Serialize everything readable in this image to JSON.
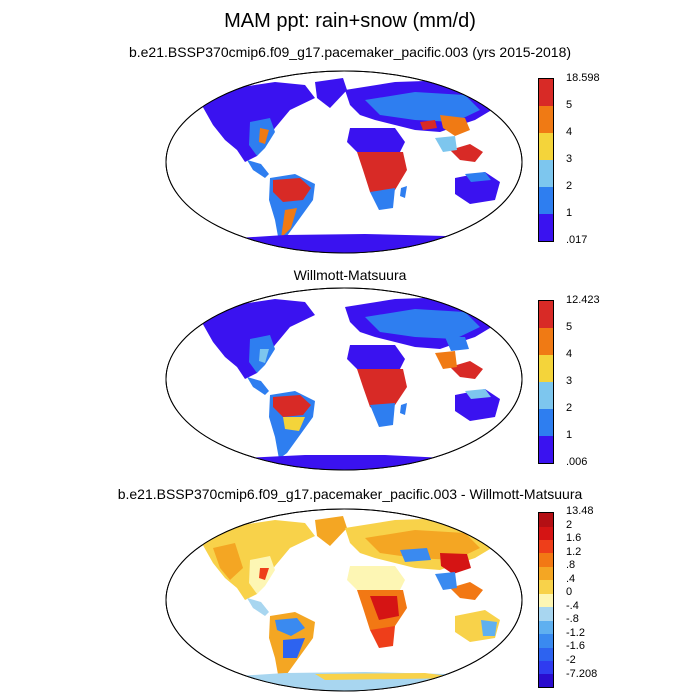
{
  "title": "MAM ppt: rain+snow (mm/d)",
  "panels": [
    {
      "title": "b.e21.BSSP370cmip6.f09_g17.pacemaker_pacific.003 (yrs 2015-2018)",
      "colorbar": {
        "colors": [
          "#3a12f0",
          "#2e7ef0",
          "#7dc6ee",
          "#f4d43a",
          "#f07a14",
          "#d82a26"
        ],
        "labels": [
          ".017",
          "1",
          "2",
          "3",
          "4",
          "5",
          "18.598"
        ]
      }
    },
    {
      "title": "Willmott-Matsuura",
      "colorbar": {
        "colors": [
          "#3a12f0",
          "#2e7ef0",
          "#7dc6ee",
          "#f4d43a",
          "#f07a14",
          "#d82a26"
        ],
        "labels": [
          ".006",
          "1",
          "2",
          "3",
          "4",
          "5",
          "12.423"
        ]
      }
    },
    {
      "title": "b.e21.BSSP370cmip6.f09_g17.pacemaker_pacific.003 - Willmott-Matsuura",
      "colorbar": {
        "colors": [
          "#2a0ccf",
          "#2f3cf0",
          "#2d63f0",
          "#3a8af0",
          "#5fb0f0",
          "#a8d6f0",
          "#fdf6b4",
          "#f8d24a",
          "#f4a623",
          "#f27814",
          "#ee3e1a",
          "#d51414",
          "#b40f14"
        ],
        "labels": [
          "-7.208",
          "-2",
          "-1.6",
          "-1.2",
          "-.8",
          "-.4",
          "0",
          ".4",
          ".8",
          "1.2",
          "1.6",
          "2",
          "13.48"
        ]
      }
    }
  ]
}
